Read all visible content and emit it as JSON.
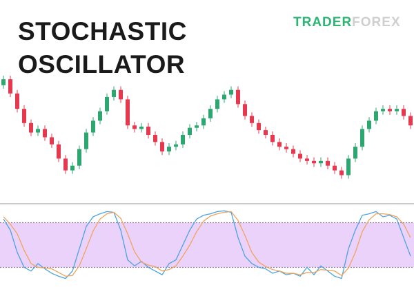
{
  "header": {
    "title_lines": [
      "STOCHASTIC",
      "OSCILLATOR"
    ],
    "logo": [
      "TRADER",
      "FOREX"
    ]
  },
  "chart_data": [
    {
      "type": "candlestick",
      "colors": {
        "up": "#2ea66f",
        "down": "#e5394f"
      },
      "ylim": [
        0,
        100
      ],
      "open": [
        92,
        97,
        85,
        72,
        60,
        52,
        55,
        48,
        42,
        30,
        20,
        24,
        38,
        52,
        62,
        70,
        82,
        88,
        80,
        58,
        55,
        57,
        50,
        44,
        36,
        40,
        42,
        50,
        56,
        58,
        64,
        72,
        80,
        84,
        88,
        76,
        66,
        60,
        54,
        50,
        44,
        40,
        38,
        34,
        30,
        28,
        26,
        28,
        24,
        20,
        16,
        30,
        40,
        55,
        62,
        70,
        72,
        70,
        72,
        66
      ],
      "high": [
        100,
        100,
        88,
        75,
        63,
        58,
        58,
        51,
        45,
        33,
        27,
        41,
        55,
        65,
        73,
        85,
        91,
        91,
        83,
        61,
        60,
        60,
        53,
        47,
        43,
        45,
        53,
        59,
        61,
        67,
        75,
        83,
        87,
        91,
        91,
        79,
        69,
        63,
        57,
        53,
        47,
        43,
        41,
        37,
        33,
        31,
        31,
        31,
        27,
        23,
        33,
        43,
        58,
        65,
        73,
        75,
        75,
        75,
        75,
        69
      ],
      "low": [
        89,
        82,
        69,
        57,
        49,
        49,
        45,
        39,
        27,
        17,
        17,
        21,
        35,
        49,
        59,
        67,
        79,
        77,
        55,
        52,
        52,
        47,
        41,
        33,
        33,
        37,
        39,
        47,
        53,
        55,
        61,
        69,
        77,
        81,
        73,
        63,
        57,
        51,
        47,
        41,
        37,
        35,
        31,
        27,
        25,
        23,
        23,
        21,
        17,
        13,
        13,
        27,
        37,
        52,
        59,
        67,
        67,
        67,
        63,
        55
      ],
      "close": [
        97,
        85,
        72,
        60,
        52,
        55,
        48,
        42,
        30,
        20,
        24,
        38,
        52,
        62,
        70,
        82,
        88,
        80,
        58,
        55,
        57,
        50,
        44,
        36,
        40,
        42,
        50,
        56,
        58,
        64,
        72,
        80,
        84,
        88,
        76,
        66,
        60,
        54,
        50,
        44,
        40,
        38,
        34,
        30,
        28,
        26,
        28,
        24,
        20,
        16,
        30,
        40,
        55,
        62,
        70,
        72,
        70,
        72,
        66,
        58
      ]
    },
    {
      "type": "line",
      "ylim": [
        0,
        100
      ],
      "levels": [
        80,
        20
      ],
      "band_color": "#ebd2fb",
      "series": [
        {
          "color": "#4aa3e0",
          "values": [
            85,
            70,
            40,
            20,
            15,
            25,
            18,
            12,
            8,
            5,
            15,
            45,
            75,
            88,
            92,
            95,
            94,
            70,
            30,
            22,
            28,
            20,
            15,
            10,
            25,
            30,
            50,
            70,
            85,
            90,
            92,
            95,
            96,
            94,
            60,
            35,
            25,
            20,
            18,
            12,
            15,
            10,
            12,
            8,
            20,
            10,
            22,
            15,
            8,
            5,
            45,
            70,
            90,
            92,
            95,
            88,
            90,
            85,
            60,
            35
          ]
        },
        {
          "color": "#f0a35a",
          "values": [
            88,
            78,
            65,
            43,
            25,
            20,
            19,
            18,
            13,
            8,
            9,
            22,
            45,
            69,
            85,
            92,
            94,
            86,
            65,
            41,
            27,
            23,
            21,
            15,
            17,
            22,
            35,
            50,
            68,
            82,
            89,
            92,
            94,
            95,
            83,
            63,
            40,
            27,
            21,
            17,
            15,
            12,
            12,
            10,
            13,
            13,
            17,
            16,
            15,
            9,
            19,
            40,
            68,
            84,
            92,
            92,
            91,
            88,
            78,
            60
          ]
        }
      ]
    }
  ]
}
